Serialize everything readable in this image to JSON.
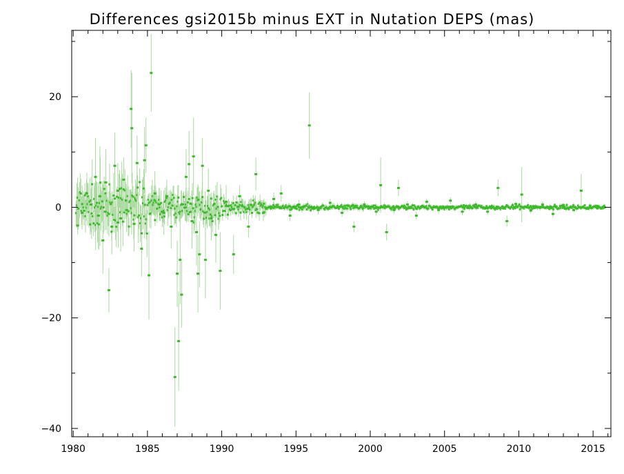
{
  "chart_data": {
    "type": "scatter",
    "title": "Differences gsi2015b minus EXT in Nutation DEPS (mas)",
    "xlabel": "",
    "ylabel": "",
    "xlim": [
      1979.9,
      2016.2
    ],
    "ylim": [
      -41.5,
      32
    ],
    "x_ticks": [
      1980,
      1985,
      1990,
      1995,
      2000,
      2005,
      2010,
      2015
    ],
    "x_tick_labels": [
      "1980",
      "1985",
      "1990",
      "1995",
      "2000",
      "2005",
      "2010",
      "2015"
    ],
    "y_ticks": [
      20,
      0,
      -20,
      -40
    ],
    "y_tick_labels": [
      "20",
      "0",
      "−20",
      "−40"
    ],
    "grid": false,
    "colors": {
      "point": "#3cb82a",
      "error_bar": "#a9d99f",
      "axis": "#000000"
    },
    "series": [
      {
        "points": [
          {
            "x": 1980.3,
            "y": -3.3,
            "err": 1.6
          },
          {
            "x": 1980.6,
            "y": -1.0,
            "err": 3.0
          },
          {
            "x": 1980.9,
            "y": 2.5,
            "err": 2.5
          },
          {
            "x": 1981.2,
            "y": 0.5,
            "err": 5.0
          },
          {
            "x": 1981.5,
            "y": 5.5,
            "err": 7.0
          },
          {
            "x": 1981.7,
            "y": -1.5,
            "err": 6.0
          },
          {
            "x": 1981.8,
            "y": 2.0,
            "err": 9.0
          },
          {
            "x": 1982.0,
            "y": -6.0,
            "err": 6.0
          },
          {
            "x": 1982.2,
            "y": 4.5,
            "err": 6.0
          },
          {
            "x": 1982.4,
            "y": -15.0,
            "err": 4.0
          },
          {
            "x": 1982.6,
            "y": -3.5,
            "err": 5.0
          },
          {
            "x": 1982.8,
            "y": 7.5,
            "err": 6.0
          },
          {
            "x": 1983.0,
            "y": 3.0,
            "err": 5.0
          },
          {
            "x": 1983.2,
            "y": -2.0,
            "err": 6.0
          },
          {
            "x": 1983.4,
            "y": 5.0,
            "err": 4.0
          },
          {
            "x": 1983.6,
            "y": -0.5,
            "err": 4.0
          },
          {
            "x": 1983.9,
            "y": 17.8,
            "err": 7.0
          },
          {
            "x": 1983.95,
            "y": 14.3,
            "err": 10.0
          },
          {
            "x": 1984.1,
            "y": -3.0,
            "err": 5.0
          },
          {
            "x": 1984.3,
            "y": 8.0,
            "err": 5.0
          },
          {
            "x": 1984.6,
            "y": -7.5,
            "err": 5.0
          },
          {
            "x": 1984.8,
            "y": 8.5,
            "err": 6.0
          },
          {
            "x": 1984.9,
            "y": 11.2,
            "err": 5.0
          },
          {
            "x": 1985.1,
            "y": -12.3,
            "err": 8.0
          },
          {
            "x": 1985.25,
            "y": 24.3,
            "err": 7.0
          },
          {
            "x": 1985.5,
            "y": 2.5,
            "err": 4.0
          },
          {
            "x": 1985.8,
            "y": 0.5,
            "err": 3.0
          },
          {
            "x": 1986.1,
            "y": -1.0,
            "err": 4.0
          },
          {
            "x": 1986.3,
            "y": 2.0,
            "err": 3.0
          },
          {
            "x": 1986.6,
            "y": -3.5,
            "err": 4.0
          },
          {
            "x": 1986.85,
            "y": -30.7,
            "err": 9.0
          },
          {
            "x": 1987.0,
            "y": -12.0,
            "err": 6.0
          },
          {
            "x": 1987.1,
            "y": -24.2,
            "err": 9.0
          },
          {
            "x": 1987.2,
            "y": -9.5,
            "err": 8.0
          },
          {
            "x": 1987.3,
            "y": -15.8,
            "err": 6.0
          },
          {
            "x": 1987.6,
            "y": 5.5,
            "err": 5.0
          },
          {
            "x": 1987.8,
            "y": 7.8,
            "err": 6.0
          },
          {
            "x": 1988.0,
            "y": -2.5,
            "err": 5.0
          },
          {
            "x": 1988.1,
            "y": 9.2,
            "err": 7.0
          },
          {
            "x": 1988.3,
            "y": -4.5,
            "err": 6.0
          },
          {
            "x": 1988.4,
            "y": -12.0,
            "err": 7.0
          },
          {
            "x": 1988.5,
            "y": -8.5,
            "err": 6.0
          },
          {
            "x": 1988.7,
            "y": 7.5,
            "err": 5.0
          },
          {
            "x": 1988.9,
            "y": -9.5,
            "err": 7.0
          },
          {
            "x": 1989.1,
            "y": 3.0,
            "err": 4.0
          },
          {
            "x": 1989.3,
            "y": -2.0,
            "err": 4.0
          },
          {
            "x": 1989.6,
            "y": -5.0,
            "err": 5.0
          },
          {
            "x": 1989.9,
            "y": -11.5,
            "err": 7.0
          },
          {
            "x": 1990.3,
            "y": 1.0,
            "err": 3.0
          },
          {
            "x": 1990.8,
            "y": -8.5,
            "err": 3.5
          },
          {
            "x": 1991.2,
            "y": 2.0,
            "err": 2.0
          },
          {
            "x": 1991.8,
            "y": -3.5,
            "err": 2.0
          },
          {
            "x": 1992.3,
            "y": 6.0,
            "err": 3.0
          },
          {
            "x": 1992.8,
            "y": -1.0,
            "err": 1.5
          },
          {
            "x": 1993.5,
            "y": 1.5,
            "err": 1.2
          },
          {
            "x": 1994.0,
            "y": 2.5,
            "err": 1.5
          },
          {
            "x": 1994.6,
            "y": -1.5,
            "err": 1.0
          },
          {
            "x": 1995.2,
            "y": 0.5,
            "err": 0.8
          },
          {
            "x": 1995.9,
            "y": 14.8,
            "err": 6.0
          },
          {
            "x": 1996.5,
            "y": -0.5,
            "err": 0.8
          },
          {
            "x": 1997.3,
            "y": 0.8,
            "err": 0.7
          },
          {
            "x": 1998.1,
            "y": -1.0,
            "err": 0.7
          },
          {
            "x": 1998.9,
            "y": -3.5,
            "err": 1.0
          },
          {
            "x": 1999.6,
            "y": 0.5,
            "err": 0.6
          },
          {
            "x": 2000.4,
            "y": -0.8,
            "err": 0.7
          },
          {
            "x": 2000.7,
            "y": 4.0,
            "err": 5.0
          },
          {
            "x": 2001.1,
            "y": -4.5,
            "err": 1.5
          },
          {
            "x": 2001.6,
            "y": -0.5,
            "err": 0.6
          },
          {
            "x": 2001.9,
            "y": 3.5,
            "err": 1.5
          },
          {
            "x": 2002.5,
            "y": 0.5,
            "err": 0.6
          },
          {
            "x": 2003.1,
            "y": -1.5,
            "err": 0.7
          },
          {
            "x": 2003.8,
            "y": 1.0,
            "err": 0.6
          },
          {
            "x": 2004.6,
            "y": -0.5,
            "err": 0.6
          },
          {
            "x": 2005.4,
            "y": 1.2,
            "err": 0.6
          },
          {
            "x": 2006.2,
            "y": -0.8,
            "err": 0.6
          },
          {
            "x": 2007.1,
            "y": 0.5,
            "err": 0.5
          },
          {
            "x": 2007.9,
            "y": -0.8,
            "err": 0.5
          },
          {
            "x": 2008.6,
            "y": 3.5,
            "err": 1.5
          },
          {
            "x": 2009.2,
            "y": -2.5,
            "err": 1.0
          },
          {
            "x": 2009.8,
            "y": 0.6,
            "err": 0.5
          },
          {
            "x": 2010.2,
            "y": 2.3,
            "err": 5.0
          },
          {
            "x": 2010.8,
            "y": -0.6,
            "err": 0.5
          },
          {
            "x": 2011.6,
            "y": 0.5,
            "err": 0.5
          },
          {
            "x": 2012.3,
            "y": -1.2,
            "err": 0.6
          },
          {
            "x": 2013.0,
            "y": 0.4,
            "err": 0.4
          },
          {
            "x": 2013.7,
            "y": -0.5,
            "err": 0.4
          },
          {
            "x": 2014.2,
            "y": 3.0,
            "err": 3.0
          },
          {
            "x": 2014.8,
            "y": 0.3,
            "err": 0.4
          },
          {
            "x": 2015.3,
            "y": -0.2,
            "err": 0.3
          },
          {
            "x": 2015.7,
            "y": 0.1,
            "err": 0.3
          }
        ]
      }
    ]
  }
}
